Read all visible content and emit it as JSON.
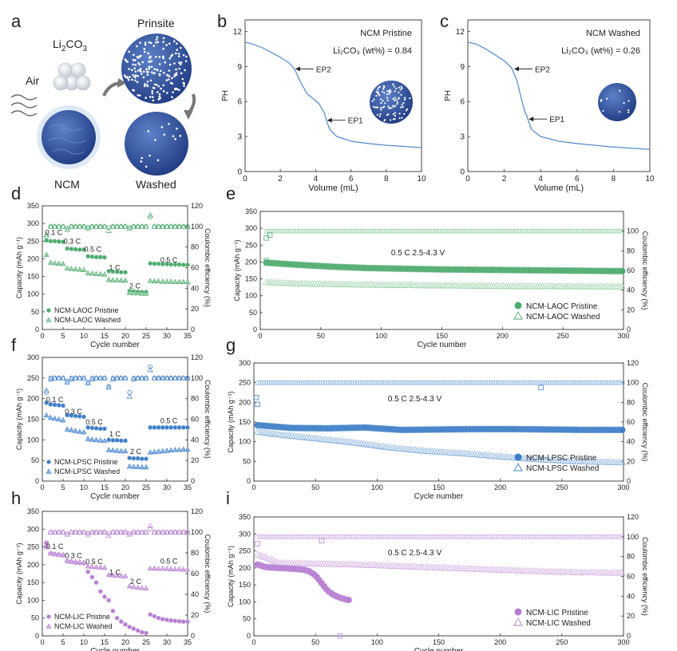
{
  "colors": {
    "green_dark": "#4daa6e",
    "green_light": "#9dd3ad",
    "blue_dark": "#3f7fc7",
    "blue_light": "#8ab3e3",
    "purple_dark": "#b77fd2",
    "purple_light": "#d3aee6",
    "ph_curve": "#5b8fd0",
    "sphere": "#3e5fa8",
    "axis": "#333333"
  },
  "panel_a": {
    "letter": "a",
    "li2co3_label": "Li",
    "li2co3_sub": "2",
    "li2co3_tail": "CO",
    "li2co3_sub2": "3",
    "air_label": "Air",
    "pristine_label": "Prinsite",
    "ncm_label": "NCM",
    "washed_label": "Washed"
  },
  "chart_data": [
    {
      "id": "b",
      "type": "line",
      "letter": "b",
      "xlabel": "Volume (mL)",
      "ylabel": "PH",
      "xlim": [
        0,
        10
      ],
      "ylim": [
        0,
        13
      ],
      "xticks": [
        0,
        2,
        4,
        6,
        8,
        10
      ],
      "yticks": [
        0,
        3,
        6,
        9,
        12
      ],
      "legend_title": "NCM Pristine",
      "legend_value": "Li₂CO₃ (wt%) = 0.84",
      "annotations": [
        {
          "text": "EP2",
          "x": 2.8,
          "y": 8.8
        },
        {
          "text": "EP1",
          "x": 4.6,
          "y": 4.4
        }
      ],
      "series": [
        {
          "name": "NCM Pristine",
          "x": [
            0,
            0.5,
            1,
            1.5,
            2,
            2.5,
            2.8,
            3.1,
            3.5,
            3.9,
            4.2,
            4.5,
            4.6,
            4.8,
            5.2,
            6,
            7,
            8,
            9,
            10
          ],
          "y": [
            11.1,
            10.9,
            10.6,
            10.2,
            9.8,
            9.3,
            8.8,
            7.8,
            6.7,
            6.2,
            5.8,
            5.0,
            4.4,
            3.6,
            3.0,
            2.6,
            2.4,
            2.25,
            2.15,
            2.05
          ]
        }
      ]
    },
    {
      "id": "c",
      "type": "line",
      "letter": "c",
      "xlabel": "Volume (mL)",
      "ylabel": "PH",
      "xlim": [
        0,
        10
      ],
      "ylim": [
        0,
        13
      ],
      "xticks": [
        0,
        2,
        4,
        6,
        8,
        10
      ],
      "yticks": [
        0,
        3,
        6,
        9,
        12
      ],
      "legend_title": "NCM Washed",
      "legend_value": "Li₂CO₃ (wt%) = 0.26",
      "annotations": [
        {
          "text": "EP2",
          "x": 2.5,
          "y": 8.8
        },
        {
          "text": "EP1",
          "x": 3.3,
          "y": 4.5
        }
      ],
      "series": [
        {
          "name": "NCM Washed",
          "x": [
            0,
            0.5,
            1,
            1.5,
            2,
            2.4,
            2.7,
            2.9,
            3.1,
            3.3,
            3.5,
            4,
            5,
            6,
            7,
            8,
            9,
            10
          ],
          "y": [
            11.1,
            10.9,
            10.5,
            10.0,
            9.5,
            8.9,
            7.8,
            6.5,
            5.3,
            4.5,
            3.6,
            3.0,
            2.6,
            2.4,
            2.25,
            2.1,
            2.0,
            1.9
          ]
        }
      ]
    },
    {
      "id": "d",
      "type": "scatter",
      "letter": "d",
      "xlabel": "Cycle number",
      "ylabel": "Capacity (mAh g⁻¹)",
      "y2label": "Coulombic efficiency (%)",
      "xlim": [
        0,
        35
      ],
      "ylim": [
        0,
        350
      ],
      "y2lim": [
        0,
        120
      ],
      "xticks": [
        0,
        5,
        10,
        15,
        20,
        25,
        30,
        35
      ],
      "yticks": [
        0,
        50,
        100,
        150,
        200,
        250,
        300,
        350
      ],
      "y2ticks": [
        0,
        20,
        40,
        60,
        80,
        100,
        120
      ],
      "rate_labels": [
        {
          "text": "0.1 C",
          "x": 2.8,
          "y": 268
        },
        {
          "text": "0.3 C",
          "x": 7.2,
          "y": 243
        },
        {
          "text": "0.5 C",
          "x": 12.2,
          "y": 220
        },
        {
          "text": "1 C",
          "x": 17.4,
          "y": 168
        },
        {
          "text": "2 C",
          "x": 22.3,
          "y": 116
        },
        {
          "text": "0.5 C",
          "x": 30.5,
          "y": 190
        }
      ],
      "legend": [
        "NCM-LAOC Pristine",
        "NCM-LAOC Washed"
      ],
      "pristine_capacity": [
        252,
        250,
        250,
        249,
        248,
        229,
        228,
        227,
        226,
        226,
        207,
        206,
        205,
        205,
        204,
        165,
        164,
        163,
        162,
        162,
        109,
        108,
        107,
        106,
        106,
        187,
        186,
        186,
        185,
        185,
        184,
        184,
        184,
        183,
        183
      ],
      "washed_capacity": [
        212,
        190,
        188,
        187,
        186,
        173,
        172,
        171,
        170,
        169,
        160,
        159,
        158,
        157,
        156,
        141,
        140,
        140,
        139,
        139,
        104,
        103,
        103,
        102,
        102,
        138,
        137,
        137,
        136,
        136,
        136,
        135,
        135,
        135,
        135
      ],
      "pristine_ce": [
        90,
        100,
        100,
        100,
        100,
        98,
        100,
        100,
        100,
        100,
        99,
        100,
        100,
        100,
        100,
        99,
        100,
        100,
        100,
        100,
        99,
        100,
        100,
        100,
        100,
        109,
        100,
        100,
        100,
        100,
        100,
        100,
        100,
        100,
        100
      ],
      "washed_ce": [
        92,
        100,
        100,
        100,
        100,
        97,
        100,
        100,
        100,
        100,
        98,
        100,
        100,
        100,
        100,
        96,
        100,
        100,
        100,
        100,
        98,
        100,
        100,
        100,
        100,
        111,
        100,
        100,
        100,
        100,
        100,
        100,
        100,
        100,
        100
      ]
    },
    {
      "id": "e",
      "type": "scatter",
      "letter": "e",
      "xlabel": "Cycle number",
      "ylabel": "Capacity (mAh g⁻¹)",
      "y2label": "Coulombic efficiency (%)",
      "xlim": [
        0,
        300
      ],
      "ylim": [
        0,
        350
      ],
      "y2lim": [
        0,
        120
      ],
      "xticks": [
        0,
        50,
        100,
        150,
        200,
        250,
        300
      ],
      "yticks": [
        0,
        50,
        100,
        150,
        200,
        250,
        300,
        350
      ],
      "y2ticks": [
        0,
        20,
        40,
        60,
        80,
        100
      ],
      "condition": "0.5 C    2.5-4.3 V",
      "legend": [
        "NCM-LAOC Pristine",
        "NCM-LAOC Washed"
      ],
      "pristine_capacity": {
        "x": [
          5,
          30,
          60,
          90,
          120,
          150,
          180,
          210,
          240,
          270,
          300
        ],
        "y": [
          198,
          192,
          186,
          182,
          180,
          178,
          177,
          176,
          175,
          174,
          173
        ]
      },
      "washed_capacity": {
        "x": [
          5,
          30,
          60,
          90,
          120,
          150,
          180,
          210,
          240,
          270,
          300
        ],
        "y": [
          140,
          136,
          134,
          132,
          131,
          130,
          129,
          128,
          128,
          127,
          127
        ]
      },
      "ce": {
        "x": [
          5,
          30,
          300
        ],
        "y": [
          100,
          100,
          100
        ]
      },
      "ce_outliers": [
        {
          "x": 5,
          "y": 93
        },
        {
          "x": 8,
          "y": 96
        },
        {
          "x": 5,
          "y": 70
        }
      ]
    },
    {
      "id": "f",
      "type": "scatter",
      "letter": "f",
      "xlabel": "Cycle number",
      "ylabel": "Capacity (mAh g⁻¹)",
      "y2label": "Coulombic efficiency (%)",
      "xlim": [
        0,
        35
      ],
      "ylim": [
        0,
        300
      ],
      "y2lim": [
        0,
        120
      ],
      "xticks": [
        0,
        5,
        10,
        15,
        20,
        25,
        30,
        35
      ],
      "yticks": [
        0,
        50,
        100,
        150,
        200,
        250,
        300
      ],
      "y2ticks": [
        0,
        20,
        40,
        60,
        80,
        100,
        120
      ],
      "rate_labels": [
        {
          "text": "0.1 C",
          "x": 3,
          "y": 192
        },
        {
          "text": "0.3 C",
          "x": 7.5,
          "y": 163
        },
        {
          "text": "0.5 C",
          "x": 12.5,
          "y": 137
        },
        {
          "text": "1 C",
          "x": 17.5,
          "y": 108
        },
        {
          "text": "2 C",
          "x": 22.5,
          "y": 66
        },
        {
          "text": "0.5 C",
          "x": 30.5,
          "y": 140
        }
      ],
      "legend": [
        "NCM-LPSC Pristine",
        "NCM-LPSC Washed"
      ],
      "pristine_capacity": [
        190,
        186,
        185,
        184,
        183,
        160,
        159,
        158,
        157,
        156,
        130,
        129,
        128,
        127,
        127,
        100,
        99,
        99,
        98,
        98,
        56,
        55,
        55,
        54,
        54,
        130,
        130,
        130,
        130,
        130,
        130,
        130,
        130,
        130,
        130
      ],
      "washed_capacity": [
        160,
        154,
        152,
        150,
        148,
        126,
        124,
        122,
        120,
        119,
        103,
        101,
        100,
        99,
        98,
        76,
        75,
        74,
        73,
        73,
        36,
        35,
        35,
        34,
        34,
        70,
        71,
        72,
        73,
        74,
        75,
        76,
        76,
        77,
        77
      ],
      "pristine_ce": [
        86,
        100,
        100,
        100,
        100,
        97,
        100,
        100,
        100,
        100,
        96,
        100,
        100,
        100,
        100,
        92,
        100,
        100,
        100,
        100,
        86,
        100,
        100,
        100,
        100,
        111,
        100,
        100,
        100,
        100,
        100,
        100,
        100,
        100,
        100
      ],
      "washed_ce": [
        88,
        99,
        100,
        100,
        100,
        96,
        99,
        100,
        100,
        100,
        95,
        99,
        100,
        100,
        100,
        91,
        99,
        100,
        100,
        100,
        82,
        99,
        100,
        100,
        100,
        108,
        100,
        100,
        100,
        100,
        100,
        100,
        100,
        100,
        100
      ]
    },
    {
      "id": "g",
      "type": "scatter",
      "letter": "g",
      "xlabel": "Cycle number",
      "ylabel": "Capacity (mAh g⁻¹)",
      "y2label": "Coulombic efficiency (%)",
      "xlim": [
        0,
        300
      ],
      "ylim": [
        0,
        300
      ],
      "y2lim": [
        0,
        120
      ],
      "xticks": [
        0,
        50,
        100,
        150,
        200,
        250,
        300
      ],
      "yticks": [
        0,
        50,
        100,
        150,
        200,
        250,
        300
      ],
      "y2ticks": [
        0,
        20,
        40,
        60,
        80,
        100,
        120
      ],
      "condition": "0.5 C    2.5-4.3 V",
      "legend": [
        "NCM-LPSC Pristine",
        "NCM-LPSC Washed"
      ],
      "pristine_capacity": {
        "x": [
          3,
          30,
          60,
          90,
          120,
          150,
          180,
          210,
          240,
          270,
          300
        ],
        "y": [
          142,
          135,
          134,
          136,
          130,
          131,
          132,
          132,
          131,
          130,
          130
        ]
      },
      "washed_capacity": {
        "x": [
          3,
          20,
          50,
          80,
          110,
          140,
          170,
          200,
          230,
          260,
          300
        ],
        "y": [
          125,
          118,
          108,
          98,
          85,
          76,
          70,
          62,
          55,
          50,
          47
        ]
      },
      "ce": {
        "x": [
          3,
          300
        ],
        "y": [
          100,
          100
        ]
      },
      "ce_outliers": [
        {
          "x": 2,
          "y": 85
        },
        {
          "x": 3,
          "y": 78
        },
        {
          "x": 233,
          "y": 95
        }
      ]
    },
    {
      "id": "h",
      "type": "scatter",
      "letter": "h",
      "xlabel": "Cycle number",
      "ylabel": "Capacity (mAh g⁻¹)",
      "y2label": "Coulombic efficiency (%)",
      "xlim": [
        0,
        35
      ],
      "ylim": [
        0,
        350
      ],
      "y2lim": [
        0,
        120
      ],
      "xticks": [
        0,
        5,
        10,
        15,
        20,
        25,
        30,
        35
      ],
      "yticks": [
        0,
        50,
        100,
        150,
        200,
        250,
        300,
        350
      ],
      "y2ticks": [
        0,
        20,
        40,
        60,
        80,
        100,
        120
      ],
      "rate_labels": [
        {
          "text": "0.1 C",
          "x": 3,
          "y": 245
        },
        {
          "text": "0.3 C",
          "x": 7.5,
          "y": 219
        },
        {
          "text": "0.5 C",
          "x": 12.5,
          "y": 202
        },
        {
          "text": "1 C",
          "x": 17.5,
          "y": 172
        },
        {
          "text": "2 C",
          "x": 22.5,
          "y": 146
        },
        {
          "text": "0.5 C",
          "x": 30.5,
          "y": 203
        }
      ],
      "legend": [
        "NCM-LIC Pristine",
        "NCM-LIC Washed"
      ],
      "pristine_capacity": [
        260,
        232,
        230,
        228,
        226,
        210,
        208,
        206,
        205,
        204,
        180,
        165,
        150,
        125,
        110,
        100,
        70,
        50,
        40,
        32,
        25,
        20,
        15,
        10,
        8,
        60,
        55,
        50,
        47,
        45,
        43,
        42,
        41,
        40,
        40
      ],
      "washed_capacity": [
        250,
        232,
        230,
        229,
        228,
        212,
        210,
        209,
        208,
        207,
        196,
        195,
        194,
        193,
        192,
        172,
        171,
        170,
        169,
        168,
        140,
        138,
        136,
        135,
        134,
        190,
        190,
        189,
        189,
        189,
        188,
        188,
        188,
        187,
        187
      ],
      "pristine_ce": [
        90,
        100,
        100,
        100,
        100,
        98,
        100,
        100,
        100,
        100,
        99,
        100,
        100,
        100,
        100,
        99,
        100,
        100,
        100,
        100,
        99,
        100,
        100,
        100,
        100,
        103,
        100,
        100,
        100,
        100,
        100,
        100,
        100,
        100,
        100
      ],
      "washed_ce": [
        88,
        100,
        100,
        100,
        100,
        98,
        100,
        100,
        100,
        100,
        98,
        100,
        100,
        100,
        100,
        97,
        100,
        100,
        100,
        100,
        98,
        100,
        100,
        100,
        100,
        106,
        100,
        100,
        100,
        100,
        100,
        100,
        100,
        100,
        100
      ]
    },
    {
      "id": "i",
      "type": "scatter",
      "letter": "i",
      "xlabel": "Cycle number",
      "ylabel": "Capacity (mAh g⁻¹)",
      "y2label": "Coulombic efficiency (%)",
      "xlim": [
        0,
        300
      ],
      "ylim": [
        0,
        350
      ],
      "y2lim": [
        0,
        120
      ],
      "xticks": [
        0,
        50,
        100,
        150,
        200,
        250,
        300
      ],
      "yticks": [
        0,
        50,
        100,
        150,
        200,
        250,
        300,
        350
      ],
      "y2ticks": [
        0,
        20,
        40,
        60,
        80,
        100,
        120
      ],
      "condition": "0.5 C    2.5-4.3 V",
      "legend": [
        "NCM-LIC Pristine",
        "NCM-LIC Washed"
      ],
      "pristine_capacity": {
        "x": [
          3,
          10,
          20,
          30,
          40,
          45,
          50,
          55,
          60,
          65,
          70,
          75,
          78
        ],
        "y": [
          210,
          202,
          200,
          198,
          195,
          190,
          178,
          155,
          132,
          120,
          112,
          107,
          105
        ]
      },
      "washed_capacity": {
        "x": [
          3,
          20,
          50,
          80,
          110,
          140,
          170,
          200,
          230,
          260,
          300
        ],
        "y": [
          240,
          215,
          212,
          210,
          206,
          202,
          198,
          194,
          190,
          187,
          185
        ]
      },
      "ce": {
        "x": [
          3,
          300
        ],
        "y": [
          100,
          100
        ]
      },
      "ce_outliers": [
        {
          "x": 3,
          "y": 93
        },
        {
          "x": 70,
          "y": 0
        },
        {
          "x": 55,
          "y": 96
        }
      ]
    }
  ]
}
